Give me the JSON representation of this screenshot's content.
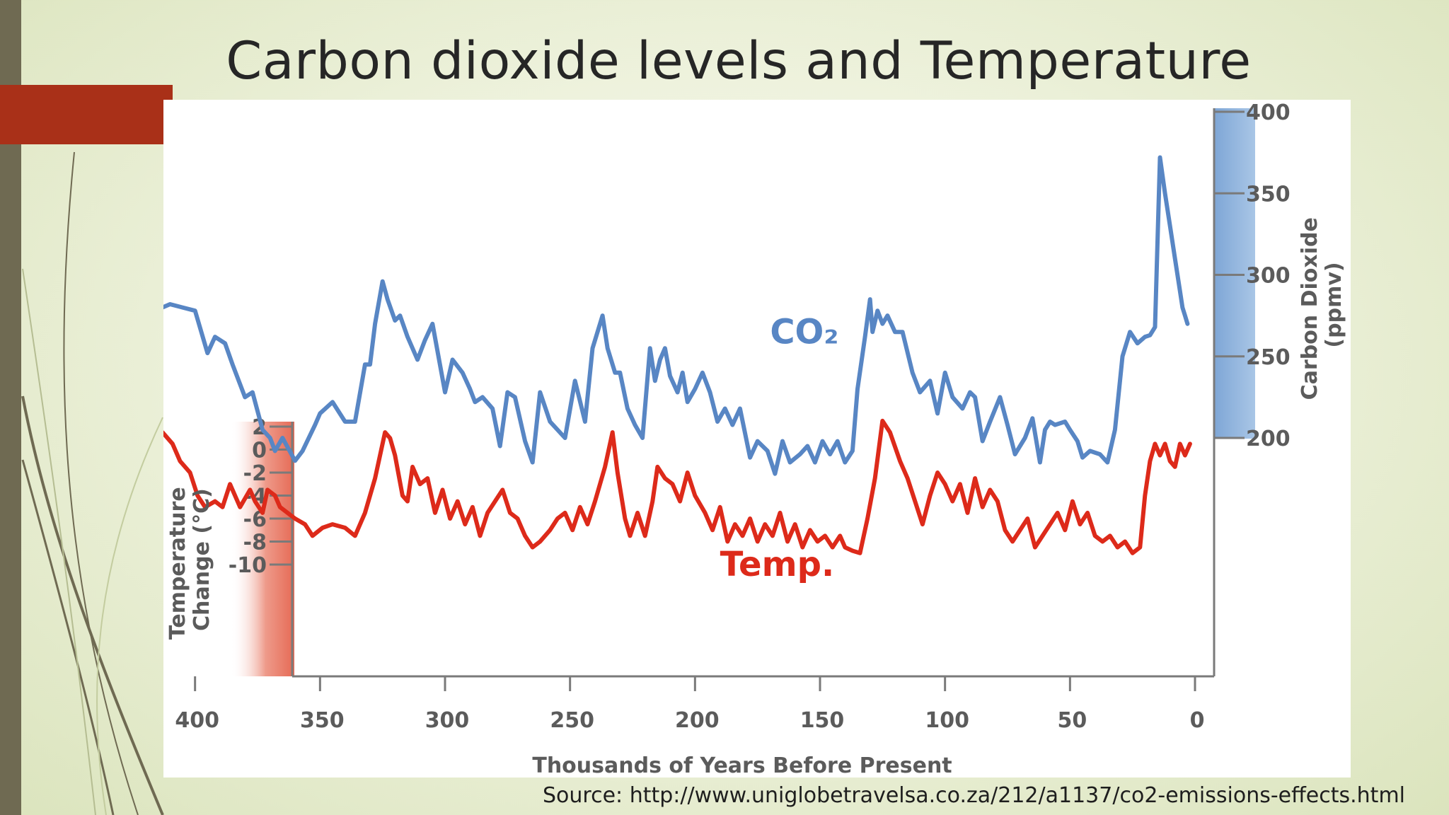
{
  "slide": {
    "title": "Carbon dioxide levels and Temperature",
    "source": "Source: http://www.uniglobetravelsa.co.za/212/a1137/co2-emissions-effects.html"
  },
  "colors": {
    "co2_line": "#5886c4",
    "temp_line": "#dd2a1a",
    "co2_axis_band": "#8fb3dc",
    "temp_axis_band": "#ea7b68",
    "accent_tab": "#a93018",
    "left_band": "#6f6a52"
  },
  "chart_data": {
    "type": "line",
    "xlabel": "Thousands of Years Before Present",
    "x_ticks": [
      "400",
      "350",
      "300",
      "250",
      "200",
      "150",
      "100",
      "50",
      "0"
    ],
    "x_tick_values": [
      400,
      350,
      300,
      250,
      200,
      150,
      100,
      50,
      0
    ],
    "xlim": [
      440,
      0
    ],
    "y_left": {
      "label_lines": [
        "Temperature",
        "Change (°C)"
      ],
      "ticks": [
        "2",
        "0",
        "-2",
        "-4",
        "-6",
        "-8",
        "-10"
      ],
      "tick_values": [
        2,
        0,
        -2,
        -4,
        -6,
        -8,
        -10
      ]
    },
    "y_right": {
      "label_lines": [
        "Carbon Dioxide",
        "(ppmv)"
      ],
      "ticks": [
        "400",
        "350",
        "300",
        "250",
        "200"
      ],
      "tick_values": [
        400,
        350,
        300,
        250,
        200
      ]
    },
    "grid": false,
    "series": [
      {
        "name": "CO₂",
        "axis": "right",
        "x": [
          420,
          418,
          415,
          413,
          410,
          405,
          400,
          395,
          392,
          388,
          385,
          380,
          377,
          373,
          370,
          368,
          365,
          360,
          357,
          352,
          350,
          345,
          340,
          336,
          332,
          330,
          328,
          325,
          323,
          320,
          318,
          315,
          311,
          308,
          305,
          300,
          297,
          293,
          290,
          288,
          285,
          281,
          278,
          275,
          272,
          268,
          265,
          262,
          258,
          255,
          252,
          248,
          244,
          241,
          237,
          235,
          232,
          230,
          227,
          224,
          221,
          218,
          216,
          214,
          212,
          210,
          207,
          205,
          203,
          200,
          197,
          194,
          191,
          188,
          185,
          182,
          178,
          175,
          171,
          168,
          165,
          162,
          158,
          155,
          152,
          149,
          146,
          143,
          140,
          137,
          135,
          132,
          130,
          129,
          127,
          125,
          123,
          120,
          117,
          113,
          110,
          106,
          103,
          100,
          97,
          93,
          90,
          88,
          85,
          82,
          78,
          75,
          72,
          68,
          65,
          62,
          60,
          58,
          56,
          52,
          50,
          47,
          45,
          42,
          38,
          35,
          32,
          29,
          26,
          23,
          20,
          18,
          16,
          14,
          12,
          10,
          8,
          6,
          5,
          4,
          3
        ],
        "values": [
          280,
          288,
          283,
          280,
          282,
          280,
          278,
          252,
          262,
          258,
          245,
          225,
          228,
          205,
          200,
          192,
          200,
          186,
          192,
          208,
          215,
          222,
          210,
          210,
          245,
          245,
          270,
          296,
          285,
          272,
          275,
          262,
          248,
          260,
          270,
          228,
          248,
          240,
          230,
          222,
          225,
          218,
          195,
          228,
          225,
          198,
          185,
          228,
          210,
          205,
          200,
          235,
          210,
          255,
          275,
          255,
          240,
          240,
          218,
          208,
          200,
          255,
          235,
          248,
          255,
          238,
          228,
          240,
          222,
          230,
          240,
          228,
          210,
          218,
          208,
          218,
          188,
          198,
          192,
          178,
          198,
          185,
          190,
          195,
          185,
          198,
          190,
          198,
          185,
          192,
          230,
          262,
          285,
          265,
          278,
          270,
          275,
          265,
          265,
          240,
          228,
          235,
          215,
          240,
          225,
          218,
          228,
          225,
          198,
          210,
          225,
          208,
          190,
          200,
          212,
          185,
          205,
          210,
          208,
          210,
          205,
          198,
          188,
          192,
          190,
          185,
          205,
          250,
          265,
          258,
          262,
          263,
          268,
          372,
          350,
          330,
          310,
          290,
          280,
          275,
          270
        ],
        "series_label_x": 170,
        "series_label_y": 258
      },
      {
        "name": "Temp.",
        "axis": "left",
        "x": [
          425,
          420,
          417,
          413,
          409,
          406,
          402,
          399,
          396,
          392,
          389,
          386,
          382,
          378,
          376,
          373,
          371,
          368,
          366,
          363,
          360,
          356,
          353,
          349,
          345,
          340,
          336,
          332,
          328,
          324,
          322,
          320,
          317,
          315,
          313,
          310,
          307,
          304,
          301,
          298,
          295,
          292,
          289,
          286,
          283,
          280,
          277,
          274,
          271,
          268,
          265,
          262,
          258,
          255,
          252,
          249,
          246,
          243,
          240,
          236,
          233,
          231,
          228,
          226,
          223,
          220,
          217,
          215,
          212,
          209,
          206,
          203,
          200,
          196,
          193,
          190,
          187,
          184,
          181,
          178,
          175,
          172,
          169,
          166,
          163,
          160,
          157,
          154,
          151,
          148,
          145,
          142,
          140,
          137,
          134,
          131,
          128,
          125,
          122,
          118,
          115,
          112,
          109,
          106,
          103,
          100,
          97,
          94,
          91,
          88,
          85,
          82,
          79,
          76,
          73,
          70,
          67,
          64,
          61,
          58,
          55,
          52,
          49,
          46,
          43,
          40,
          37,
          34,
          31,
          28,
          25,
          22,
          20,
          18,
          16,
          14,
          12,
          10,
          8,
          6,
          4,
          2
        ],
        "values": [
          0,
          1.5,
          1.0,
          1.5,
          0.5,
          -1,
          -2,
          -4,
          -5,
          -4.5,
          -5,
          -3,
          -5,
          -3.5,
          -4.5,
          -5.5,
          -3.5,
          -4,
          -5,
          -5.5,
          -6,
          -6.5,
          -7.5,
          -6.8,
          -6.5,
          -6.8,
          -7.5,
          -5.5,
          -2.5,
          1.5,
          1.0,
          -0.5,
          -4,
          -4.5,
          -1.5,
          -3,
          -2.5,
          -5.5,
          -3.5,
          -6,
          -4.5,
          -6.5,
          -5,
          -7.5,
          -5.5,
          -4.5,
          -3.5,
          -5.5,
          -6,
          -7.5,
          -8.5,
          -8.0,
          -7.0,
          -6.0,
          -5.5,
          -7.0,
          -5.0,
          -6.5,
          -4.5,
          -1.5,
          1.5,
          -2,
          -6,
          -7.5,
          -5.5,
          -7.5,
          -4.5,
          -1.5,
          -2.5,
          -3,
          -4.5,
          -2,
          -4,
          -5.5,
          -7,
          -5,
          -8,
          -6.5,
          -7.5,
          -6,
          -8,
          -6.5,
          -7.5,
          -5.5,
          -8,
          -6.5,
          -8.5,
          -7,
          -8,
          -7.5,
          -8.5,
          -7.5,
          -8.5,
          -8.8,
          -9,
          -6,
          -2.5,
          2.5,
          1.5,
          -1,
          -2.5,
          -4.5,
          -6.5,
          -4,
          -2,
          -3,
          -4.5,
          -3,
          -5.5,
          -2.5,
          -5,
          -3.5,
          -4.5,
          -7,
          -8,
          -7,
          -6,
          -8.5,
          -7.5,
          -6.5,
          -5.5,
          -7,
          -4.5,
          -6.5,
          -5.5,
          -7.5,
          -8,
          -7.5,
          -8.5,
          -8.0,
          -9,
          -8.5,
          -4,
          -1,
          0.5,
          -0.5,
          0.5,
          -1,
          -1.5,
          0.5,
          -0.5,
          0.5
        ],
        "series_label_x": 190,
        "series_label_y": -10
      }
    ]
  }
}
